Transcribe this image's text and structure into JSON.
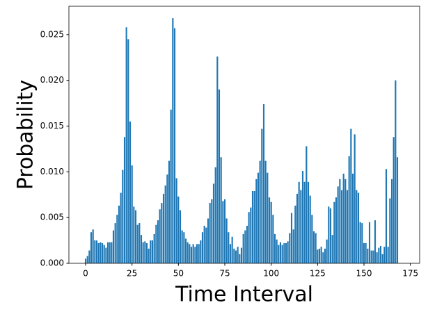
{
  "chart_data": {
    "type": "bar",
    "xlabel": "Time Interval",
    "ylabel": "Probability",
    "color": "#1f77b4",
    "x": [
      0,
      1,
      2,
      3,
      4,
      5,
      6,
      7,
      8,
      9,
      10,
      11,
      12,
      13,
      14,
      15,
      16,
      17,
      18,
      19,
      20,
      21,
      22,
      23,
      24,
      25,
      26,
      27,
      28,
      29,
      30,
      31,
      32,
      33,
      34,
      35,
      36,
      37,
      38,
      39,
      40,
      41,
      42,
      43,
      44,
      45,
      46,
      47,
      48,
      49,
      50,
      51,
      52,
      53,
      54,
      55,
      56,
      57,
      58,
      59,
      60,
      61,
      62,
      63,
      64,
      65,
      66,
      67,
      68,
      69,
      70,
      71,
      72,
      73,
      74,
      75,
      76,
      77,
      78,
      79,
      80,
      81,
      82,
      83,
      84,
      85,
      86,
      87,
      88,
      89,
      90,
      91,
      92,
      93,
      94,
      95,
      96,
      97,
      98,
      99,
      100,
      101,
      102,
      103,
      104,
      105,
      106,
      107,
      108,
      109,
      110,
      111,
      112,
      113,
      114,
      115,
      116,
      117,
      118,
      119,
      120,
      121,
      122,
      123,
      124,
      125,
      126,
      127,
      128,
      129,
      130,
      131,
      132,
      133,
      134,
      135,
      136,
      137,
      138,
      139,
      140,
      141,
      142,
      143,
      144,
      145,
      146,
      147,
      148,
      149,
      150,
      151,
      152,
      153,
      154,
      155,
      156,
      157,
      158,
      159,
      160,
      161,
      162,
      163,
      164,
      165,
      166,
      167,
      168
    ],
    "values": [
      0.0005,
      0.0008,
      0.0014,
      0.0034,
      0.0037,
      0.0025,
      0.0025,
      0.0022,
      0.0023,
      0.0022,
      0.002,
      0.0017,
      0.0023,
      0.0023,
      0.0023,
      0.0036,
      0.0044,
      0.0053,
      0.0063,
      0.0077,
      0.0102,
      0.0138,
      0.0258,
      0.0245,
      0.0155,
      0.0107,
      0.0062,
      0.0058,
      0.0042,
      0.0044,
      0.0031,
      0.0023,
      0.0024,
      0.0022,
      0.0016,
      0.0025,
      0.0025,
      0.0032,
      0.0042,
      0.0047,
      0.0059,
      0.0066,
      0.0076,
      0.0085,
      0.0097,
      0.0112,
      0.0168,
      0.0268,
      0.0257,
      0.0093,
      0.0073,
      0.0058,
      0.0036,
      0.0034,
      0.0027,
      0.0023,
      0.0021,
      0.0018,
      0.0021,
      0.0018,
      0.0021,
      0.0021,
      0.0025,
      0.0034,
      0.0041,
      0.0039,
      0.0049,
      0.0066,
      0.007,
      0.0087,
      0.0105,
      0.0226,
      0.019,
      0.0116,
      0.0068,
      0.007,
      0.0049,
      0.0034,
      0.0021,
      0.0029,
      0.0016,
      0.0014,
      0.0018,
      0.001,
      0.0017,
      0.0032,
      0.0036,
      0.0041,
      0.0056,
      0.0061,
      0.0079,
      0.0079,
      0.0092,
      0.0099,
      0.0112,
      0.0147,
      0.0174,
      0.0112,
      0.0099,
      0.0072,
      0.0067,
      0.0053,
      0.0032,
      0.0026,
      0.002,
      0.0023,
      0.002,
      0.0022,
      0.0022,
      0.0024,
      0.0033,
      0.0055,
      0.0037,
      0.0063,
      0.0076,
      0.0089,
      0.008,
      0.0101,
      0.0089,
      0.0128,
      0.0089,
      0.0074,
      0.0053,
      0.0035,
      0.0033,
      0.0015,
      0.0016,
      0.0018,
      0.0012,
      0.0016,
      0.0026,
      0.0062,
      0.006,
      0.0031,
      0.0067,
      0.0072,
      0.0084,
      0.0092,
      0.008,
      0.0098,
      0.0092,
      0.008,
      0.0117,
      0.0147,
      0.0098,
      0.0141,
      0.008,
      0.0077,
      0.0045,
      0.0044,
      0.0022,
      0.0022,
      0.0016,
      0.0045,
      0.0014,
      0.0014,
      0.0047,
      0.0012,
      0.0017,
      0.0019,
      0.001,
      0.0018,
      0.0103,
      0.0018,
      0.0071,
      0.0092,
      0.0138,
      0.02,
      0.0116
    ],
    "xlim": [
      -9,
      180
    ],
    "xticks": [
      0,
      25,
      50,
      75,
      100,
      125,
      150,
      175
    ],
    "ylim": [
      0,
      0.0281
    ],
    "yticks": [
      {
        "value": 0,
        "label": "0.000"
      },
      {
        "value": 0.005,
        "label": "0.005"
      },
      {
        "value": 0.01,
        "label": "0.010"
      },
      {
        "value": 0.015,
        "label": "0.015"
      },
      {
        "value": 0.02,
        "label": "0.020"
      },
      {
        "value": 0.025,
        "label": "0.025"
      }
    ],
    "grid": false
  }
}
